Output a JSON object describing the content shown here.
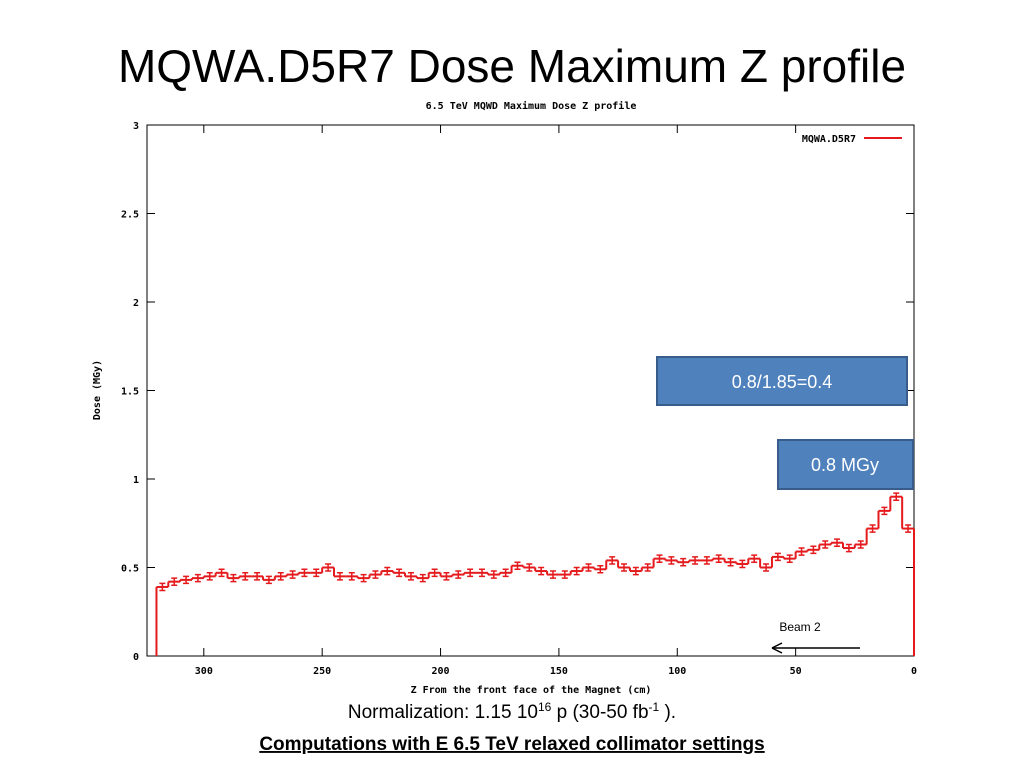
{
  "slide_title": "MQWA.D5R7 Dose Maximum Z profile",
  "chart_data": {
    "type": "histogram",
    "title": "6.5 TeV MQWD Maximum Dose Z profile",
    "x_label": "Z From the front face of the Magnet (cm)",
    "y_label": "Dose (MGy)",
    "series_name": "MQWA.D5R7",
    "color": "#e41a1c",
    "bins": [
      320,
      315,
      310,
      305,
      300,
      295,
      290,
      285,
      280,
      275,
      270,
      265,
      260,
      255,
      250,
      245,
      240,
      235,
      230,
      225,
      220,
      215,
      210,
      205,
      200,
      195,
      190,
      185,
      180,
      175,
      170,
      165,
      160,
      155,
      150,
      145,
      140,
      135,
      130,
      125,
      120,
      115,
      110,
      105,
      100,
      95,
      90,
      85,
      80,
      75,
      70,
      65,
      60,
      55,
      50,
      45,
      40,
      35,
      30,
      25,
      20,
      15,
      10,
      5,
      0
    ],
    "values": [
      0.39,
      0.42,
      0.43,
      0.44,
      0.45,
      0.47,
      0.44,
      0.45,
      0.45,
      0.43,
      0.45,
      0.46,
      0.47,
      0.47,
      0.5,
      0.45,
      0.45,
      0.44,
      0.46,
      0.48,
      0.47,
      0.45,
      0.44,
      0.47,
      0.45,
      0.46,
      0.47,
      0.47,
      0.46,
      0.47,
      0.51,
      0.5,
      0.48,
      0.46,
      0.46,
      0.48,
      0.5,
      0.49,
      0.54,
      0.5,
      0.48,
      0.5,
      0.55,
      0.54,
      0.53,
      0.54,
      0.54,
      0.55,
      0.53,
      0.52,
      0.55,
      0.5,
      0.56,
      0.55,
      0.59,
      0.6,
      0.63,
      0.64,
      0.61,
      0.63,
      0.72,
      0.82,
      0.9,
      0.72
    ],
    "errors": [
      0.02,
      0.02,
      0.02,
      0.02,
      0.02,
      0.02,
      0.02,
      0.02,
      0.02,
      0.02,
      0.02,
      0.02,
      0.02,
      0.02,
      0.02,
      0.02,
      0.02,
      0.02,
      0.02,
      0.02,
      0.02,
      0.02,
      0.02,
      0.02,
      0.02,
      0.02,
      0.02,
      0.02,
      0.02,
      0.02,
      0.02,
      0.02,
      0.02,
      0.02,
      0.02,
      0.02,
      0.02,
      0.02,
      0.02,
      0.02,
      0.02,
      0.02,
      0.02,
      0.02,
      0.02,
      0.02,
      0.02,
      0.02,
      0.02,
      0.02,
      0.02,
      0.02,
      0.02,
      0.02,
      0.02,
      0.02,
      0.02,
      0.02,
      0.02,
      0.02,
      0.02,
      0.02,
      0.02,
      0.02
    ],
    "xlim": [
      324,
      0
    ],
    "xticks": [
      300,
      250,
      200,
      150,
      100,
      50,
      0
    ],
    "ylim": [
      0,
      3
    ],
    "yticks": [
      0,
      0.5,
      1,
      1.5,
      2,
      2.5,
      3
    ],
    "annotations": [
      "0.8/1.85=0.4",
      "0.8 MGy",
      "Beam 2"
    ]
  },
  "footnote": {
    "parts": [
      "Normalization: 1.15  10",
      "16",
      " p (30-50 fb",
      "-1",
      " )."
    ],
    "settings": "Computations with E 6.5 TeV relaxed collimator settings"
  }
}
